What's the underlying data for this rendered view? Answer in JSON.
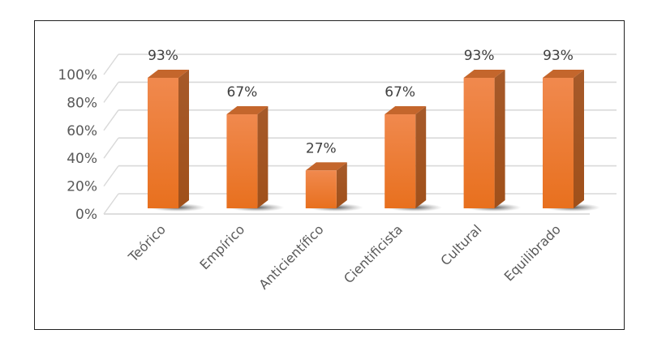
{
  "chart_data": {
    "type": "bar",
    "style": "3d-column",
    "title": "",
    "xlabel": "",
    "ylabel": "",
    "categories": [
      "Teórico",
      "Empírico",
      "Anticientífico",
      "Cientificista",
      "Cultural",
      "Equilibrado"
    ],
    "values": [
      93,
      67,
      27,
      67,
      93,
      93
    ],
    "data_labels": [
      "93%",
      "67%",
      "27%",
      "67%",
      "93%",
      "93%"
    ],
    "yticks": [
      "0%",
      "20%",
      "40%",
      "60%",
      "80%",
      "100%"
    ],
    "ylim": [
      0,
      100
    ],
    "grid": true,
    "legend": null,
    "colors": {
      "bar_front_top": "#F0894E",
      "bar_front_bottom": "#E8701E",
      "bar_side": "#A9541F",
      "bar_top": "#C4662C",
      "gridline": "#D9D9D9",
      "frame": "#222222"
    }
  }
}
